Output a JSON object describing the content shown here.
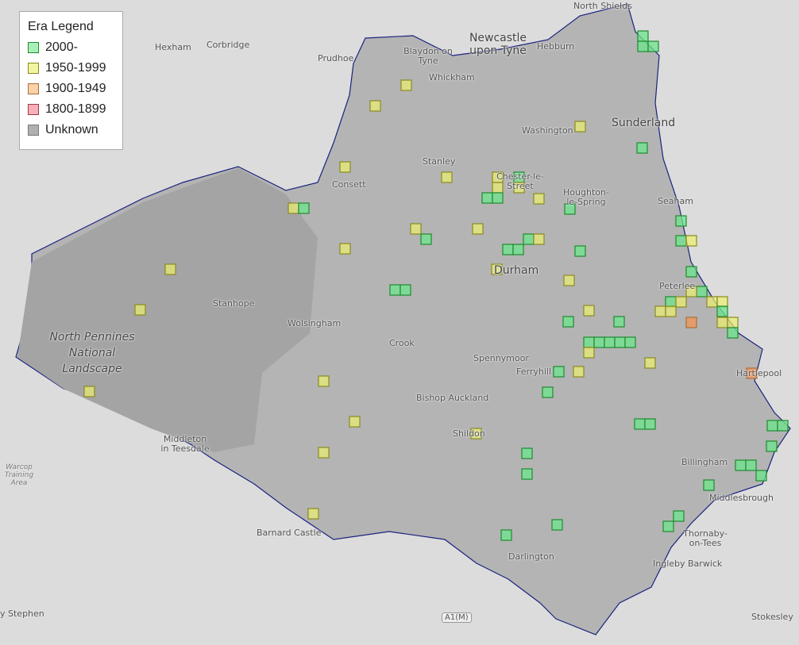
{
  "legend": {
    "title": "Era Legend",
    "items": [
      {
        "label": "2000-",
        "fill": "#a8f0b8",
        "stroke": "#1e8a2e"
      },
      {
        "label": "1950-1999",
        "fill": "#f2f5a0",
        "stroke": "#8a8a20"
      },
      {
        "label": "1900-1949",
        "fill": "#fcd0a8",
        "stroke": "#a8703a"
      },
      {
        "label": "1800-1899",
        "fill": "#f8b0b8",
        "stroke": "#a03a48"
      },
      {
        "label": "Unknown",
        "fill": "#b0b0b0",
        "stroke": "#777777"
      }
    ]
  },
  "map": {
    "region_fill": "#b4b4b4",
    "region_border": "#1a237e",
    "base": "#dcdcdc",
    "labels": {
      "north_shields": "North Shields",
      "newcastle": "Newcastle upon Tyne",
      "hexham": "Hexham",
      "corbridge": "Corbridge",
      "prudhoe": "Prudhoe",
      "blaydon": "Blaydon on Tyne",
      "hebburn": "Hebburn",
      "whickham": "Whickham",
      "sunderland": "Sunderland",
      "washington": "Washington",
      "stanley": "Stanley",
      "consett": "Consett",
      "chester": "Chester-le-Street",
      "houghton": "Houghton-le-Spring",
      "seaham": "Seaham",
      "durham": "Durham",
      "stanhope": "Stanhope",
      "wolsingham": "Wolsingham",
      "peterlee": "Peterlee",
      "park": "North Pennines National Landscape",
      "crook": "Crook",
      "spennymoor": "Spennymoor",
      "ferryhill": "Ferryhill",
      "hartlepool": "Hartlepool",
      "bishop": "Bishop Auckland",
      "shildon": "Shildon",
      "middleton": "Middleton in Teesdale",
      "warcop": "Warcop Training Area",
      "billingham": "Billingham",
      "middlesbrough": "Middlesbrough",
      "thornaby": "Thornaby-on-Tees",
      "barnard": "Barnard Castle",
      "darlington": "Darlington",
      "ingleby": "Ingleby Barwick",
      "road_a1m": "A1(M)",
      "kirkby": "y Stephen",
      "stokesley": "Stokesley"
    }
  }
}
